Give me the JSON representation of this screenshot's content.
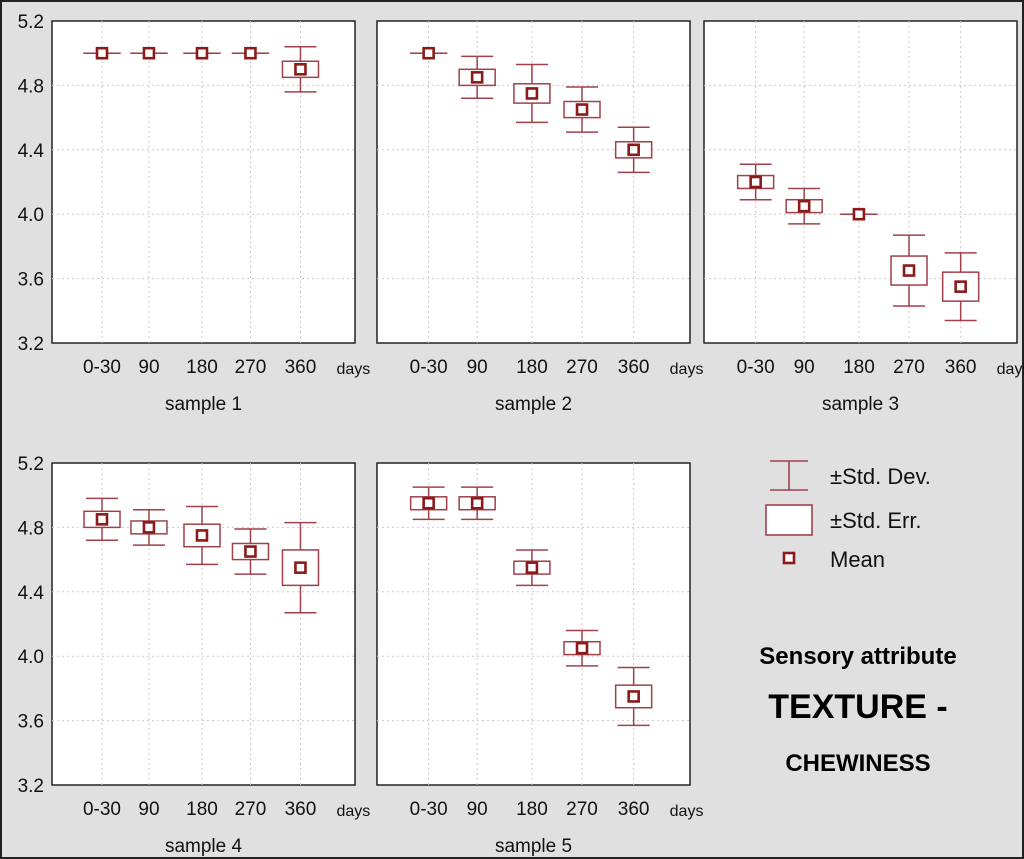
{
  "figure": {
    "background": "#e0e0e0",
    "plot_background": "#ffffff",
    "box_color": "#a0404a",
    "mean_color": "#8b1a1a",
    "grid_color": "#c9c9c9",
    "unit_label": "days"
  },
  "legend": {
    "sd_label": "±Std. Dev.",
    "se_label": "±Std. Err.",
    "mean_label": "Mean"
  },
  "caption": {
    "line1": "Sensory attribute",
    "line2": "TEXTURE -",
    "line3": "CHEWINESS"
  },
  "chart_data": [
    {
      "type": "box",
      "xlabel": "sample 1",
      "categories": [
        "0-30",
        "90",
        "180",
        "270",
        "360"
      ],
      "mean": [
        5.0,
        5.0,
        5.0,
        5.0,
        4.9
      ],
      "se": [
        0.0,
        0.0,
        0.0,
        0.0,
        0.05
      ],
      "sd": [
        0.0,
        0.0,
        0.0,
        0.0,
        0.14
      ],
      "ylim": [
        3.2,
        5.2
      ],
      "yticks": [
        "3.2",
        "3.6",
        "4.0",
        "4.4",
        "4.8",
        "5.2"
      ],
      "grid": true
    },
    {
      "type": "box",
      "xlabel": "sample 2",
      "categories": [
        "0-30",
        "90",
        "180",
        "270",
        "360"
      ],
      "mean": [
        5.0,
        4.85,
        4.75,
        4.65,
        4.4
      ],
      "se": [
        0.0,
        0.05,
        0.06,
        0.05,
        0.05
      ],
      "sd": [
        0.0,
        0.13,
        0.18,
        0.14,
        0.14
      ],
      "ylim": [
        3.2,
        5.2
      ],
      "yticks": [
        "3.2",
        "3.6",
        "4.0",
        "4.4",
        "4.8",
        "5.2"
      ],
      "grid": true
    },
    {
      "type": "box",
      "xlabel": "sample 3",
      "categories": [
        "0-30",
        "90",
        "180",
        "270",
        "360"
      ],
      "mean": [
        4.2,
        4.05,
        4.0,
        3.65,
        3.55
      ],
      "se": [
        0.04,
        0.04,
        0.0,
        0.09,
        0.09
      ],
      "sd": [
        0.11,
        0.11,
        0.0,
        0.22,
        0.21
      ],
      "ylim": [
        3.2,
        5.2
      ],
      "yticks": [
        "3.2",
        "3.6",
        "4.0",
        "4.4",
        "4.8",
        "5.2"
      ],
      "grid": true
    },
    {
      "type": "box",
      "xlabel": "sample 4",
      "categories": [
        "0-30",
        "90",
        "180",
        "270",
        "360"
      ],
      "mean": [
        4.85,
        4.8,
        4.75,
        4.65,
        4.55
      ],
      "se": [
        0.05,
        0.04,
        0.07,
        0.05,
        0.11
      ],
      "sd": [
        0.13,
        0.11,
        0.18,
        0.14,
        0.28
      ],
      "ylim": [
        3.2,
        5.2
      ],
      "yticks": [
        "3.2",
        "3.6",
        "4.0",
        "4.4",
        "4.8",
        "5.2"
      ],
      "grid": true
    },
    {
      "type": "box",
      "xlabel": "sample 5",
      "categories": [
        "0-30",
        "90",
        "180",
        "270",
        "360"
      ],
      "mean": [
        4.95,
        4.95,
        4.55,
        4.05,
        3.75
      ],
      "se": [
        0.04,
        0.04,
        0.04,
        0.04,
        0.07
      ],
      "sd": [
        0.1,
        0.1,
        0.11,
        0.11,
        0.18
      ],
      "ylim": [
        3.2,
        5.2
      ],
      "yticks": [
        "3.2",
        "3.6",
        "4.0",
        "4.4",
        "4.8",
        "5.2"
      ],
      "grid": true
    }
  ]
}
